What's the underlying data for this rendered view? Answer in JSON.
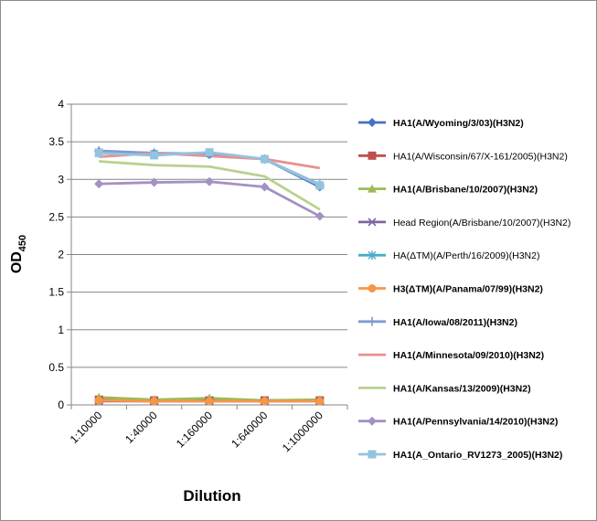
{
  "chart_data": {
    "type": "line",
    "categories": [
      "1:10000",
      "1:40000",
      "1:160000",
      "1:640000",
      "1:1000000"
    ],
    "xlabel": "Dilution",
    "ylabel": "OD",
    "ylabel_sub": "450",
    "ylim": [
      0,
      4
    ],
    "yticks": [
      "0",
      "0.5",
      "1",
      "1.5",
      "2",
      "2.5",
      "3",
      "3.5",
      "4"
    ],
    "grid": true,
    "legend_position": "right",
    "series": [
      {
        "name": "HA1(A/Wyoming/3/03)(H3N2)",
        "color": "#4472C4",
        "marker": "diamond",
        "bold": true,
        "values": [
          3.37,
          3.35,
          3.33,
          3.27,
          2.9
        ]
      },
      {
        "name": "HA1(A/Wisconsin/67/X-161/2005)(H3N2)",
        "color": "#C0504D",
        "marker": "square",
        "bold": false,
        "values": [
          0.07,
          0.06,
          0.06,
          0.06,
          0.06
        ]
      },
      {
        "name": "HA1(A/Brisbane/10/2007)(H3N2)",
        "color": "#9BBB59",
        "marker": "triangle",
        "bold": true,
        "values": [
          0.1,
          0.07,
          0.09,
          0.06,
          0.07
        ]
      },
      {
        "name": "Head Region(A/Brisbane/10/2007)(H3N2)",
        "color": "#8064A2",
        "marker": "x",
        "bold": false,
        "values": [
          0.05,
          0.05,
          0.05,
          0.05,
          0.05
        ]
      },
      {
        "name": "HA(ΔTM)(A/Perth/16/2009)(H3N2)",
        "color": "#4BACC6",
        "marker": "star",
        "bold": false,
        "values": [
          3.36,
          3.34,
          3.35,
          3.27,
          2.92
        ]
      },
      {
        "name": "H3(ΔTM)(A/Panama/07/99)(H3N2)",
        "color": "#F79646",
        "marker": "circle",
        "bold": true,
        "values": [
          0.06,
          0.05,
          0.05,
          0.05,
          0.05
        ]
      },
      {
        "name": "HA1(A/Iowa/08/2011)(H3N2)",
        "color": "#7F9BD0",
        "marker": "plus",
        "bold": true,
        "values": [
          3.38,
          3.35,
          3.34,
          3.27,
          2.93
        ]
      },
      {
        "name": "HA1(A/Minnesota/09/2010)(H3N2)",
        "color": "#E8908E",
        "marker": "none",
        "bold": true,
        "values": [
          3.3,
          3.35,
          3.31,
          3.27,
          3.15
        ]
      },
      {
        "name": "HA1(A/Kansas/13/2009)(H3N2)",
        "color": "#B9D18E",
        "marker": "none",
        "bold": true,
        "values": [
          3.24,
          3.19,
          3.17,
          3.04,
          2.6
        ]
      },
      {
        "name": "HA1(A/Pennsylvania/14/2010)(H3N2)",
        "color": "#A391C3",
        "marker": "diamond",
        "bold": true,
        "values": [
          2.94,
          2.96,
          2.97,
          2.9,
          2.51
        ]
      },
      {
        "name": "HA1(A_Ontario_RV1273_2005)(H3N2)",
        "color": "#93C3DE",
        "marker": "square",
        "bold": true,
        "values": [
          3.35,
          3.32,
          3.36,
          3.27,
          2.92
        ]
      }
    ]
  }
}
